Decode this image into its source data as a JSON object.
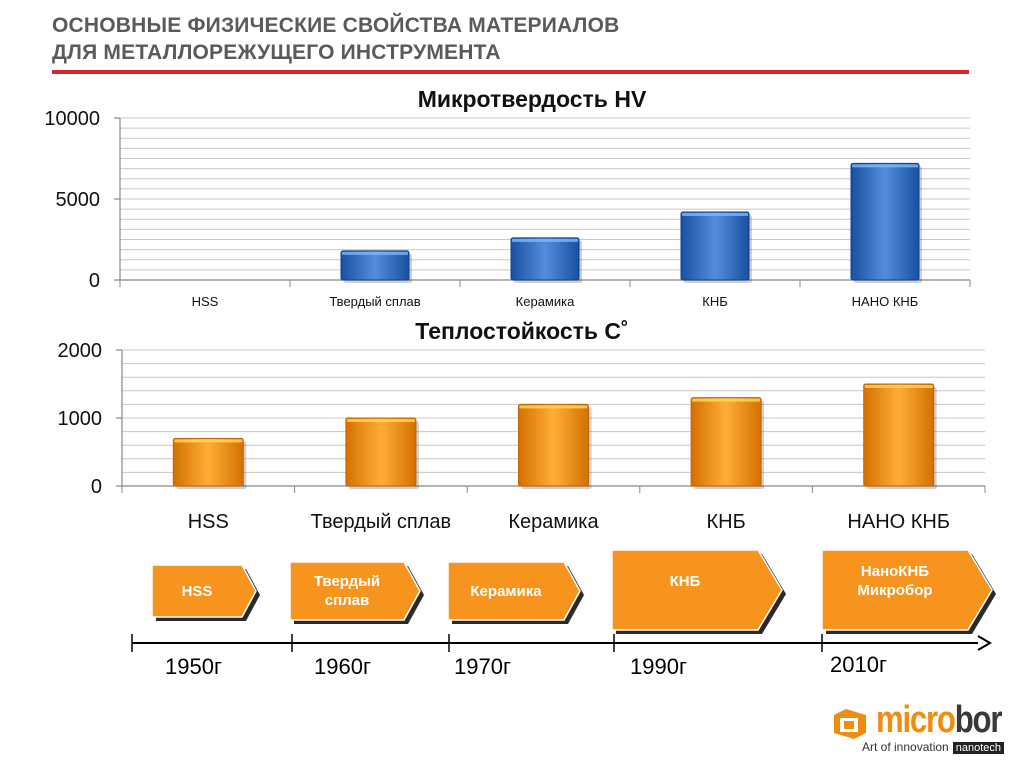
{
  "header": {
    "title_line1": "ОСНОВНЫЕ ФИЗИЧЕСКИЕ СВОЙСТВА МАТЕРИАЛОВ",
    "title_line2": "ДЛЯ МЕТАЛЛОРЕЖУЩЕГО ИНСТРУМЕНТА"
  },
  "chart_data": [
    {
      "type": "bar",
      "title": "Микротвердость HV",
      "categories": [
        "HSS",
        "Твердый сплав",
        "Керамика",
        "КНБ",
        "НАНО КНБ"
      ],
      "values": [
        0,
        1800,
        2600,
        4200,
        7200
      ],
      "ylim": [
        0,
        10000
      ],
      "yticks": [
        0,
        5000,
        10000
      ],
      "grid": true,
      "legend": "none",
      "color": "#3a74c2"
    },
    {
      "type": "bar",
      "title": "Теплостойкость С˚",
      "categories": [
        "HSS",
        "Твердый сплав",
        "Керамика",
        "КНБ",
        "НАНО КНБ"
      ],
      "values": [
        700,
        1000,
        1200,
        1300,
        1500
      ],
      "ylim": [
        0,
        2000
      ],
      "yticks": [
        0,
        1000,
        2000
      ],
      "grid": true,
      "legend": "none",
      "color": "#f7941d"
    }
  ],
  "timeline": {
    "stages": [
      {
        "label": "HSS",
        "year": "1950г"
      },
      {
        "label": "Твердый\nсплав",
        "year": "1960г"
      },
      {
        "label": "Керамика",
        "year": "1970г"
      },
      {
        "label": "КНБ",
        "year": "1990г"
      },
      {
        "label": "НаноКНБ\nМикробор",
        "year": "2010г"
      }
    ],
    "fill_color": "#f7941d"
  },
  "logo": {
    "word_part1": "micro",
    "word_part2": "bor",
    "tagline": "Art of innovation",
    "badge": "nanotech",
    "accent_color": "#f08c10"
  }
}
